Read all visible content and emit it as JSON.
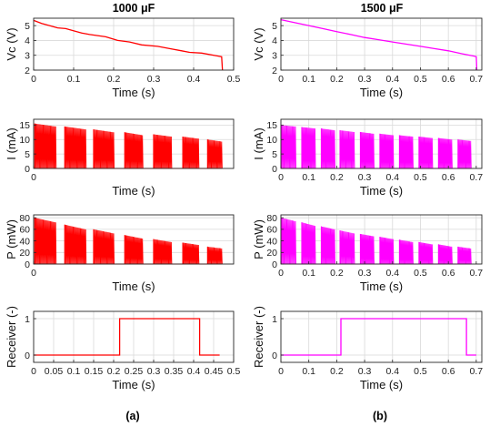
{
  "panel_a_caption": "(a)",
  "panel_b_caption": "(b)",
  "chart_data": [
    {
      "id": "a1",
      "column": "a",
      "type": "line",
      "title": "1000 μF",
      "ylabel": "Vc (V)",
      "xlabel": "Time (s)",
      "color": "#ff0000",
      "grid": true,
      "xlim": [
        0,
        0.5
      ],
      "ylim": [
        2,
        5.5
      ],
      "xticks": [
        0,
        0.1,
        0.2,
        0.3,
        0.4,
        0.5
      ],
      "xtick_labels": [
        "0",
        "0.1",
        "0.2",
        "0.3",
        "0.4",
        "0.5"
      ],
      "yticks": [
        2,
        3,
        4,
        5
      ],
      "ytick_labels": [
        "2",
        "3",
        "4",
        "5"
      ],
      "x": [
        0,
        0.02,
        0.06,
        0.08,
        0.12,
        0.14,
        0.18,
        0.21,
        0.24,
        0.27,
        0.31,
        0.34,
        0.37,
        0.39,
        0.42,
        0.46,
        0.47,
        0.472
      ],
      "y": [
        5.35,
        5.15,
        4.85,
        4.8,
        4.5,
        4.4,
        4.25,
        4.0,
        3.9,
        3.7,
        3.6,
        3.45,
        3.3,
        3.2,
        3.15,
        2.95,
        2.9,
        2.0
      ]
    },
    {
      "id": "b1",
      "column": "b",
      "type": "line",
      "title": "1500 μF",
      "ylabel": "Vc (V)",
      "xlabel": "Time (s)",
      "color": "#ff00ff",
      "grid": true,
      "xlim": [
        0,
        0.72
      ],
      "ylim": [
        2,
        5.5
      ],
      "xticks": [
        0,
        0.1,
        0.2,
        0.3,
        0.4,
        0.5,
        0.6,
        0.7
      ],
      "xtick_labels": [
        "0",
        "0.1",
        "0.2",
        "0.3",
        "0.4",
        "0.5",
        "0.6",
        "0.7"
      ],
      "yticks": [
        2,
        3,
        4,
        5
      ],
      "ytick_labels": [
        "2",
        "3",
        "4",
        "5"
      ],
      "x": [
        0,
        0.05,
        0.1,
        0.15,
        0.2,
        0.25,
        0.3,
        0.35,
        0.4,
        0.45,
        0.5,
        0.55,
        0.6,
        0.65,
        0.69,
        0.7,
        0.702
      ],
      "y": [
        5.4,
        5.2,
        5.0,
        4.8,
        4.6,
        4.4,
        4.2,
        4.05,
        3.9,
        3.75,
        3.6,
        3.45,
        3.3,
        3.1,
        2.95,
        2.9,
        2.0
      ]
    },
    {
      "id": "a2",
      "column": "a",
      "type": "pulse-bursts",
      "ylabel": "I (mA)",
      "xlabel": "Time (s)",
      "color": "#ff0000",
      "grid": true,
      "xlim": [
        0,
        0.5
      ],
      "ylim": [
        0,
        17
      ],
      "xticks": [
        0
      ],
      "xtick_labels": [
        "0"
      ],
      "yticks": [
        0,
        5,
        10,
        15
      ],
      "ytick_labels": [
        "0",
        "5",
        "10",
        "15"
      ],
      "bursts": [
        {
          "start": 0.003,
          "end": 0.055,
          "peak_start": 15.5,
          "peak_end": 14.5
        },
        {
          "start": 0.078,
          "end": 0.13,
          "peak_start": 14.5,
          "peak_end": 13.5
        },
        {
          "start": 0.15,
          "end": 0.2,
          "peak_start": 13.5,
          "peak_end": 12.5
        },
        {
          "start": 0.228,
          "end": 0.272,
          "peak_start": 12.5,
          "peak_end": 11.5
        },
        {
          "start": 0.3,
          "end": 0.344,
          "peak_start": 11.8,
          "peak_end": 11.0
        },
        {
          "start": 0.373,
          "end": 0.412,
          "peak_start": 11.0,
          "peak_end": 10.3
        },
        {
          "start": 0.435,
          "end": 0.47,
          "peak_start": 10.0,
          "peak_end": 9.3
        }
      ]
    },
    {
      "id": "b2",
      "column": "b",
      "type": "pulse-bursts",
      "ylabel": "I (mA)",
      "xlabel": "Time (s)",
      "color": "#ff00ff",
      "grid": true,
      "xlim": [
        0,
        0.72
      ],
      "ylim": [
        0,
        17
      ],
      "xticks": [
        0,
        0.1,
        0.2,
        0.3,
        0.4,
        0.5,
        0.6,
        0.7
      ],
      "xtick_labels": [
        "0",
        "0.1",
        "0.2",
        "0.3",
        "0.4",
        "0.5",
        "0.6",
        "0.7"
      ],
      "yticks": [
        0,
        5,
        10,
        15
      ],
      "ytick_labels": [
        "0",
        "5",
        "10",
        "15"
      ],
      "bursts": [
        {
          "start": 0.002,
          "end": 0.052,
          "peak_start": 15.0,
          "peak_end": 14.5
        },
        {
          "start": 0.075,
          "end": 0.122,
          "peak_start": 14.3,
          "peak_end": 13.8
        },
        {
          "start": 0.145,
          "end": 0.192,
          "peak_start": 13.8,
          "peak_end": 13.2
        },
        {
          "start": 0.212,
          "end": 0.262,
          "peak_start": 13.2,
          "peak_end": 12.6
        },
        {
          "start": 0.285,
          "end": 0.332,
          "peak_start": 12.6,
          "peak_end": 12.0
        },
        {
          "start": 0.355,
          "end": 0.402,
          "peak_start": 12.0,
          "peak_end": 11.5
        },
        {
          "start": 0.425,
          "end": 0.472,
          "peak_start": 11.5,
          "peak_end": 11.0
        },
        {
          "start": 0.495,
          "end": 0.542,
          "peak_start": 11.0,
          "peak_end": 10.5
        },
        {
          "start": 0.565,
          "end": 0.612,
          "peak_start": 10.5,
          "peak_end": 10.0
        },
        {
          "start": 0.635,
          "end": 0.68,
          "peak_start": 10.0,
          "peak_end": 9.5
        }
      ]
    },
    {
      "id": "a3",
      "column": "a",
      "type": "pulse-bursts",
      "ylabel": "P (mW)",
      "xlabel": "Time (s)",
      "color": "#ff0000",
      "grid": true,
      "xlim": [
        0,
        0.5
      ],
      "ylim": [
        0,
        85
      ],
      "xticks": [
        0
      ],
      "xtick_labels": [
        "0"
      ],
      "yticks": [
        0,
        20,
        40,
        60,
        80
      ],
      "ytick_labels": [
        "0",
        "20",
        "40",
        "60",
        "80"
      ],
      "bursts": [
        {
          "start": 0.003,
          "end": 0.055,
          "peak_start": 80,
          "peak_end": 72
        },
        {
          "start": 0.078,
          "end": 0.13,
          "peak_start": 68,
          "peak_end": 60
        },
        {
          "start": 0.15,
          "end": 0.2,
          "peak_start": 60,
          "peak_end": 53
        },
        {
          "start": 0.228,
          "end": 0.272,
          "peak_start": 50,
          "peak_end": 44
        },
        {
          "start": 0.3,
          "end": 0.344,
          "peak_start": 43,
          "peak_end": 38
        },
        {
          "start": 0.373,
          "end": 0.412,
          "peak_start": 37,
          "peak_end": 33
        },
        {
          "start": 0.435,
          "end": 0.47,
          "peak_start": 30,
          "peak_end": 27
        }
      ]
    },
    {
      "id": "b3",
      "column": "b",
      "type": "pulse-bursts",
      "ylabel": "P (mW)",
      "xlabel": "Time (s)",
      "color": "#ff00ff",
      "grid": true,
      "xlim": [
        0,
        0.72
      ],
      "ylim": [
        0,
        85
      ],
      "xticks": [
        0,
        0.1,
        0.2,
        0.3,
        0.4,
        0.5,
        0.6,
        0.7
      ],
      "xtick_labels": [
        "0",
        "0.1",
        "0.2",
        "0.3",
        "0.4",
        "0.5",
        "0.6",
        "0.7"
      ],
      "yticks": [
        0,
        20,
        40,
        60,
        80
      ],
      "ytick_labels": [
        "0",
        "20",
        "40",
        "60",
        "80"
      ],
      "bursts": [
        {
          "start": 0.002,
          "end": 0.052,
          "peak_start": 80,
          "peak_end": 74
        },
        {
          "start": 0.075,
          "end": 0.122,
          "peak_start": 72,
          "peak_end": 66
        },
        {
          "start": 0.145,
          "end": 0.192,
          "peak_start": 65,
          "peak_end": 60
        },
        {
          "start": 0.212,
          "end": 0.262,
          "peak_start": 58,
          "peak_end": 53
        },
        {
          "start": 0.285,
          "end": 0.332,
          "peak_start": 52,
          "peak_end": 48
        },
        {
          "start": 0.355,
          "end": 0.402,
          "peak_start": 47,
          "peak_end": 43
        },
        {
          "start": 0.425,
          "end": 0.472,
          "peak_start": 42,
          "peak_end": 38
        },
        {
          "start": 0.495,
          "end": 0.542,
          "peak_start": 38,
          "peak_end": 34
        },
        {
          "start": 0.565,
          "end": 0.612,
          "peak_start": 34,
          "peak_end": 30
        },
        {
          "start": 0.635,
          "end": 0.68,
          "peak_start": 30,
          "peak_end": 27
        }
      ]
    },
    {
      "id": "a4",
      "column": "a",
      "type": "line",
      "ylabel": "Receiver (-)",
      "xlabel": "Time (s)",
      "color": "#ff0000",
      "grid": true,
      "xlim": [
        0,
        0.5
      ],
      "ylim": [
        -0.2,
        1.2
      ],
      "xticks": [
        0,
        0.05,
        0.1,
        0.15,
        0.2,
        0.25,
        0.3,
        0.35,
        0.4,
        0.45,
        0.5
      ],
      "xtick_labels": [
        "0",
        "0.05",
        "0.1",
        "0.15",
        "0.2",
        "0.25",
        "0.3",
        "0.35",
        "0.4",
        "0.45",
        "0.5"
      ],
      "yticks": [
        0,
        1
      ],
      "ytick_labels": [
        "0",
        "1"
      ],
      "x": [
        0,
        0.215,
        0.215,
        0.415,
        0.415,
        0.465
      ],
      "y": [
        0,
        0,
        1,
        1,
        0,
        0
      ]
    },
    {
      "id": "b4",
      "column": "b",
      "type": "line",
      "ylabel": "Receiver (-)",
      "xlabel": "Time (s)",
      "color": "#ff00ff",
      "grid": true,
      "xlim": [
        0,
        0.72
      ],
      "ylim": [
        -0.2,
        1.2
      ],
      "xticks": [
        0,
        0.1,
        0.2,
        0.3,
        0.4,
        0.5,
        0.6,
        0.7
      ],
      "xtick_labels": [
        "0",
        "0.1",
        "0.2",
        "0.3",
        "0.4",
        "0.5",
        "0.6",
        "0.7"
      ],
      "yticks": [
        0,
        1
      ],
      "ytick_labels": [
        "0",
        "1"
      ],
      "x": [
        0,
        0.215,
        0.215,
        0.665,
        0.665,
        0.7
      ],
      "y": [
        0,
        0,
        1,
        1,
        0,
        0
      ]
    }
  ]
}
